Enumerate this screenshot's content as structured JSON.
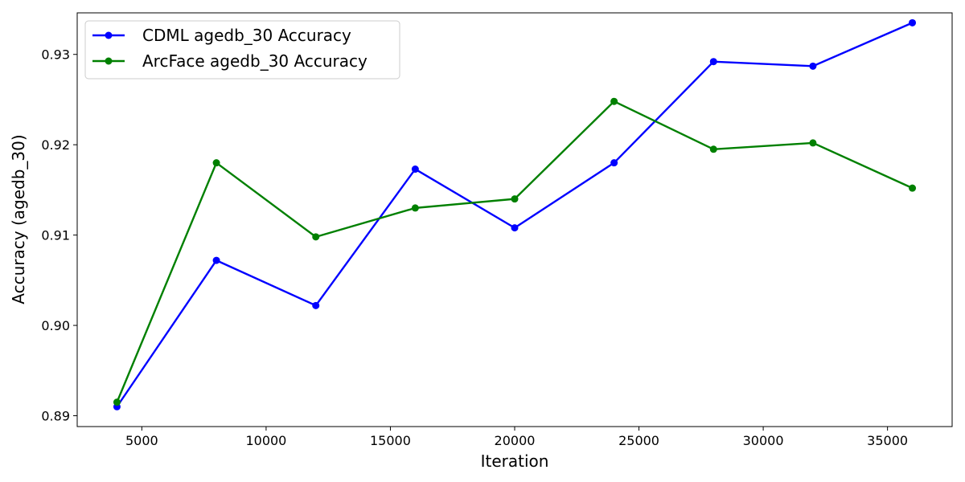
{
  "chart_data": {
    "type": "line",
    "title": "",
    "xlabel": "Iteration",
    "ylabel": "Accuracy (agedb_30)",
    "xlim": [
      2400,
      37600
    ],
    "ylim": [
      0.8888,
      0.9346
    ],
    "xticks": [
      5000,
      10000,
      15000,
      20000,
      25000,
      30000,
      35000
    ],
    "yticks": [
      0.89,
      0.9,
      0.91,
      0.92,
      0.93
    ],
    "xtick_labels": [
      "5000",
      "10000",
      "15000",
      "20000",
      "25000",
      "30000",
      "35000"
    ],
    "ytick_labels": [
      "0.89",
      "0.90",
      "0.91",
      "0.92",
      "0.93"
    ],
    "grid": false,
    "legend_position": "top-left",
    "x": [
      4000,
      8000,
      12000,
      16000,
      20000,
      24000,
      28000,
      32000,
      36000
    ],
    "series": [
      {
        "name": "CDML agedb_30 Accuracy",
        "color": "#0000ff",
        "values": [
          0.891,
          0.9072,
          0.9022,
          0.9173,
          0.9108,
          0.918,
          0.9292,
          0.9287,
          0.9335
        ]
      },
      {
        "name": "ArcFace agedb_30 Accuracy",
        "color": "#008000",
        "values": [
          0.8915,
          0.918,
          0.9098,
          0.913,
          0.914,
          0.9248,
          0.9195,
          0.9202,
          0.9152
        ]
      }
    ]
  }
}
